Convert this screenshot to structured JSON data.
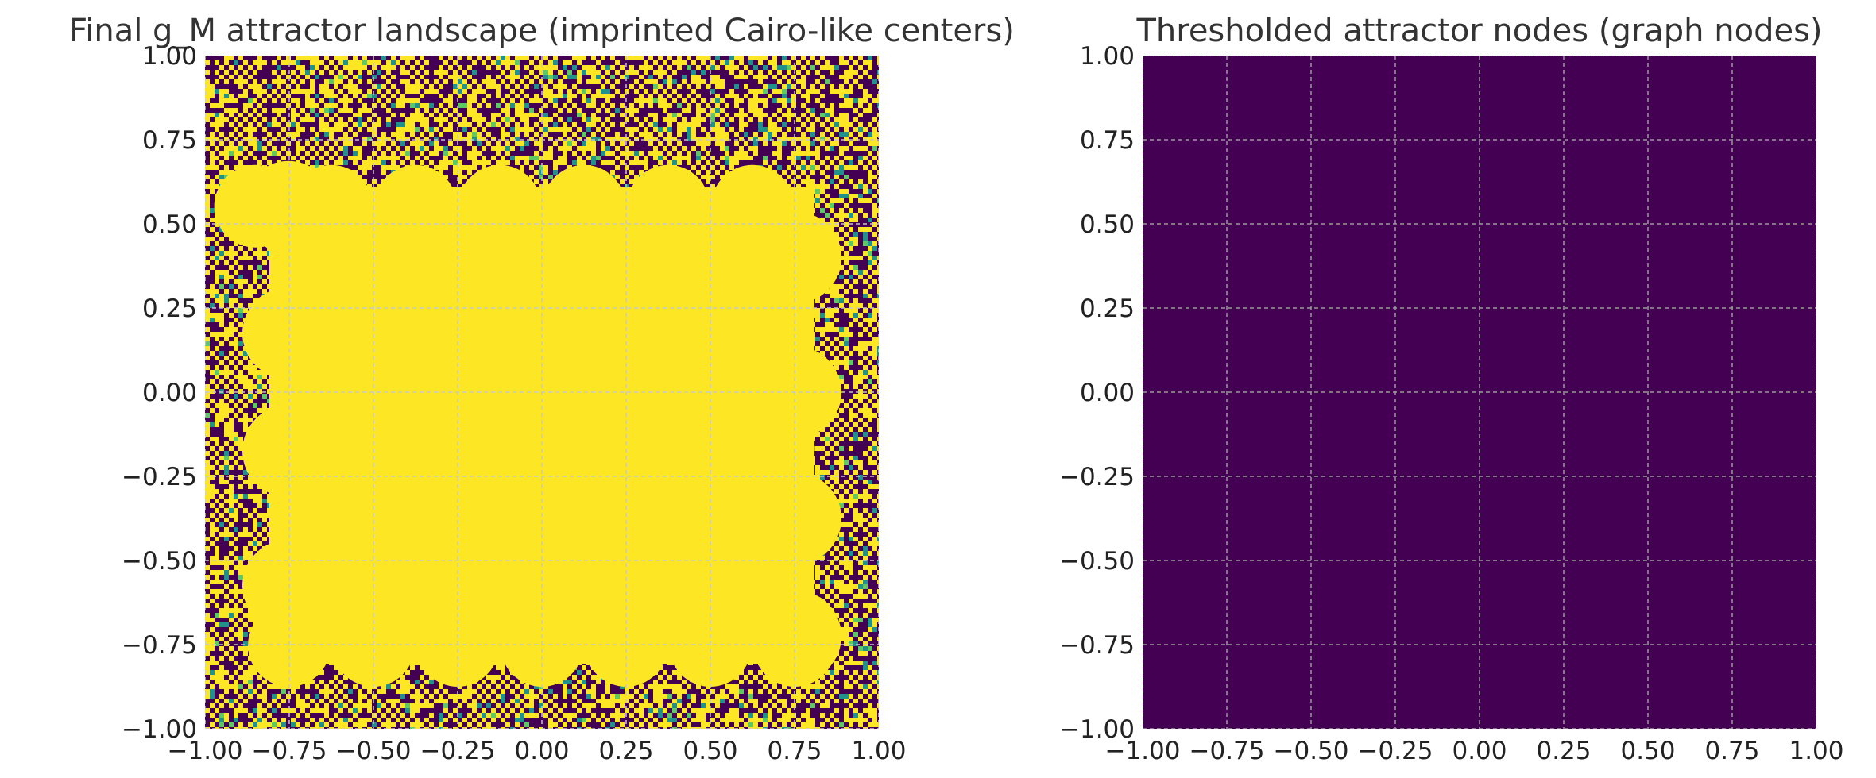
{
  "chart_data": [
    {
      "type": "heatmap",
      "title": "Final g_M attractor landscape (imprinted Cairo-like centers)",
      "xlim": [
        -1.0,
        1.0
      ],
      "ylim": [
        -1.0,
        1.0
      ],
      "xticks": [
        "−1.00",
        "−0.75",
        "−0.50",
        "−0.25",
        "0.00",
        "0.25",
        "0.50",
        "0.75",
        "1.00"
      ],
      "yticks": [
        "1.00",
        "0.75",
        "0.50",
        "0.25",
        "0.00",
        "−0.25",
        "−0.50",
        "−0.75",
        "−1.00"
      ],
      "grid": true,
      "colormap": "viridis",
      "background_pattern": "checkerboard noise (dark purple / yellow)",
      "fill_color": "#fde725",
      "noise_colors": [
        "#440154",
        "#fde725",
        "#21918c",
        "#5ec962"
      ],
      "plateau": {
        "value": 1.0,
        "x_range": [
          -0.875,
          0.875
        ],
        "y_range": [
          -0.875,
          0.675
        ],
        "bump_centers_top_x": [
          -0.85,
          -0.625,
          -0.375,
          -0.125,
          0.125,
          0.375,
          0.625
        ],
        "bump_centers_bottom_x": [
          -0.75,
          -0.5,
          -0.25,
          0.0,
          0.25,
          0.5,
          0.75
        ],
        "bump_centers_left_y": [
          0.55,
          0.175,
          -0.175,
          -0.575
        ],
        "bump_centers_right_y": [
          0.4,
          0.0,
          -0.375,
          -0.725
        ]
      }
    },
    {
      "type": "heatmap",
      "title": "Thresholded attractor nodes (graph nodes)",
      "xlim": [
        -1.0,
        1.0
      ],
      "ylim": [
        -1.0,
        1.0
      ],
      "xticks": [
        "−1.00",
        "−0.75",
        "−0.50",
        "−0.25",
        "0.00",
        "0.25",
        "0.50",
        "0.75",
        "1.00"
      ],
      "yticks": [
        "1.00",
        "0.75",
        "0.50",
        "0.25",
        "0.00",
        "−0.25",
        "−0.50",
        "−0.75",
        "−1.00"
      ],
      "grid": true,
      "colormap": "viridis",
      "fill_value": 0,
      "fill_color": "#440154"
    }
  ]
}
